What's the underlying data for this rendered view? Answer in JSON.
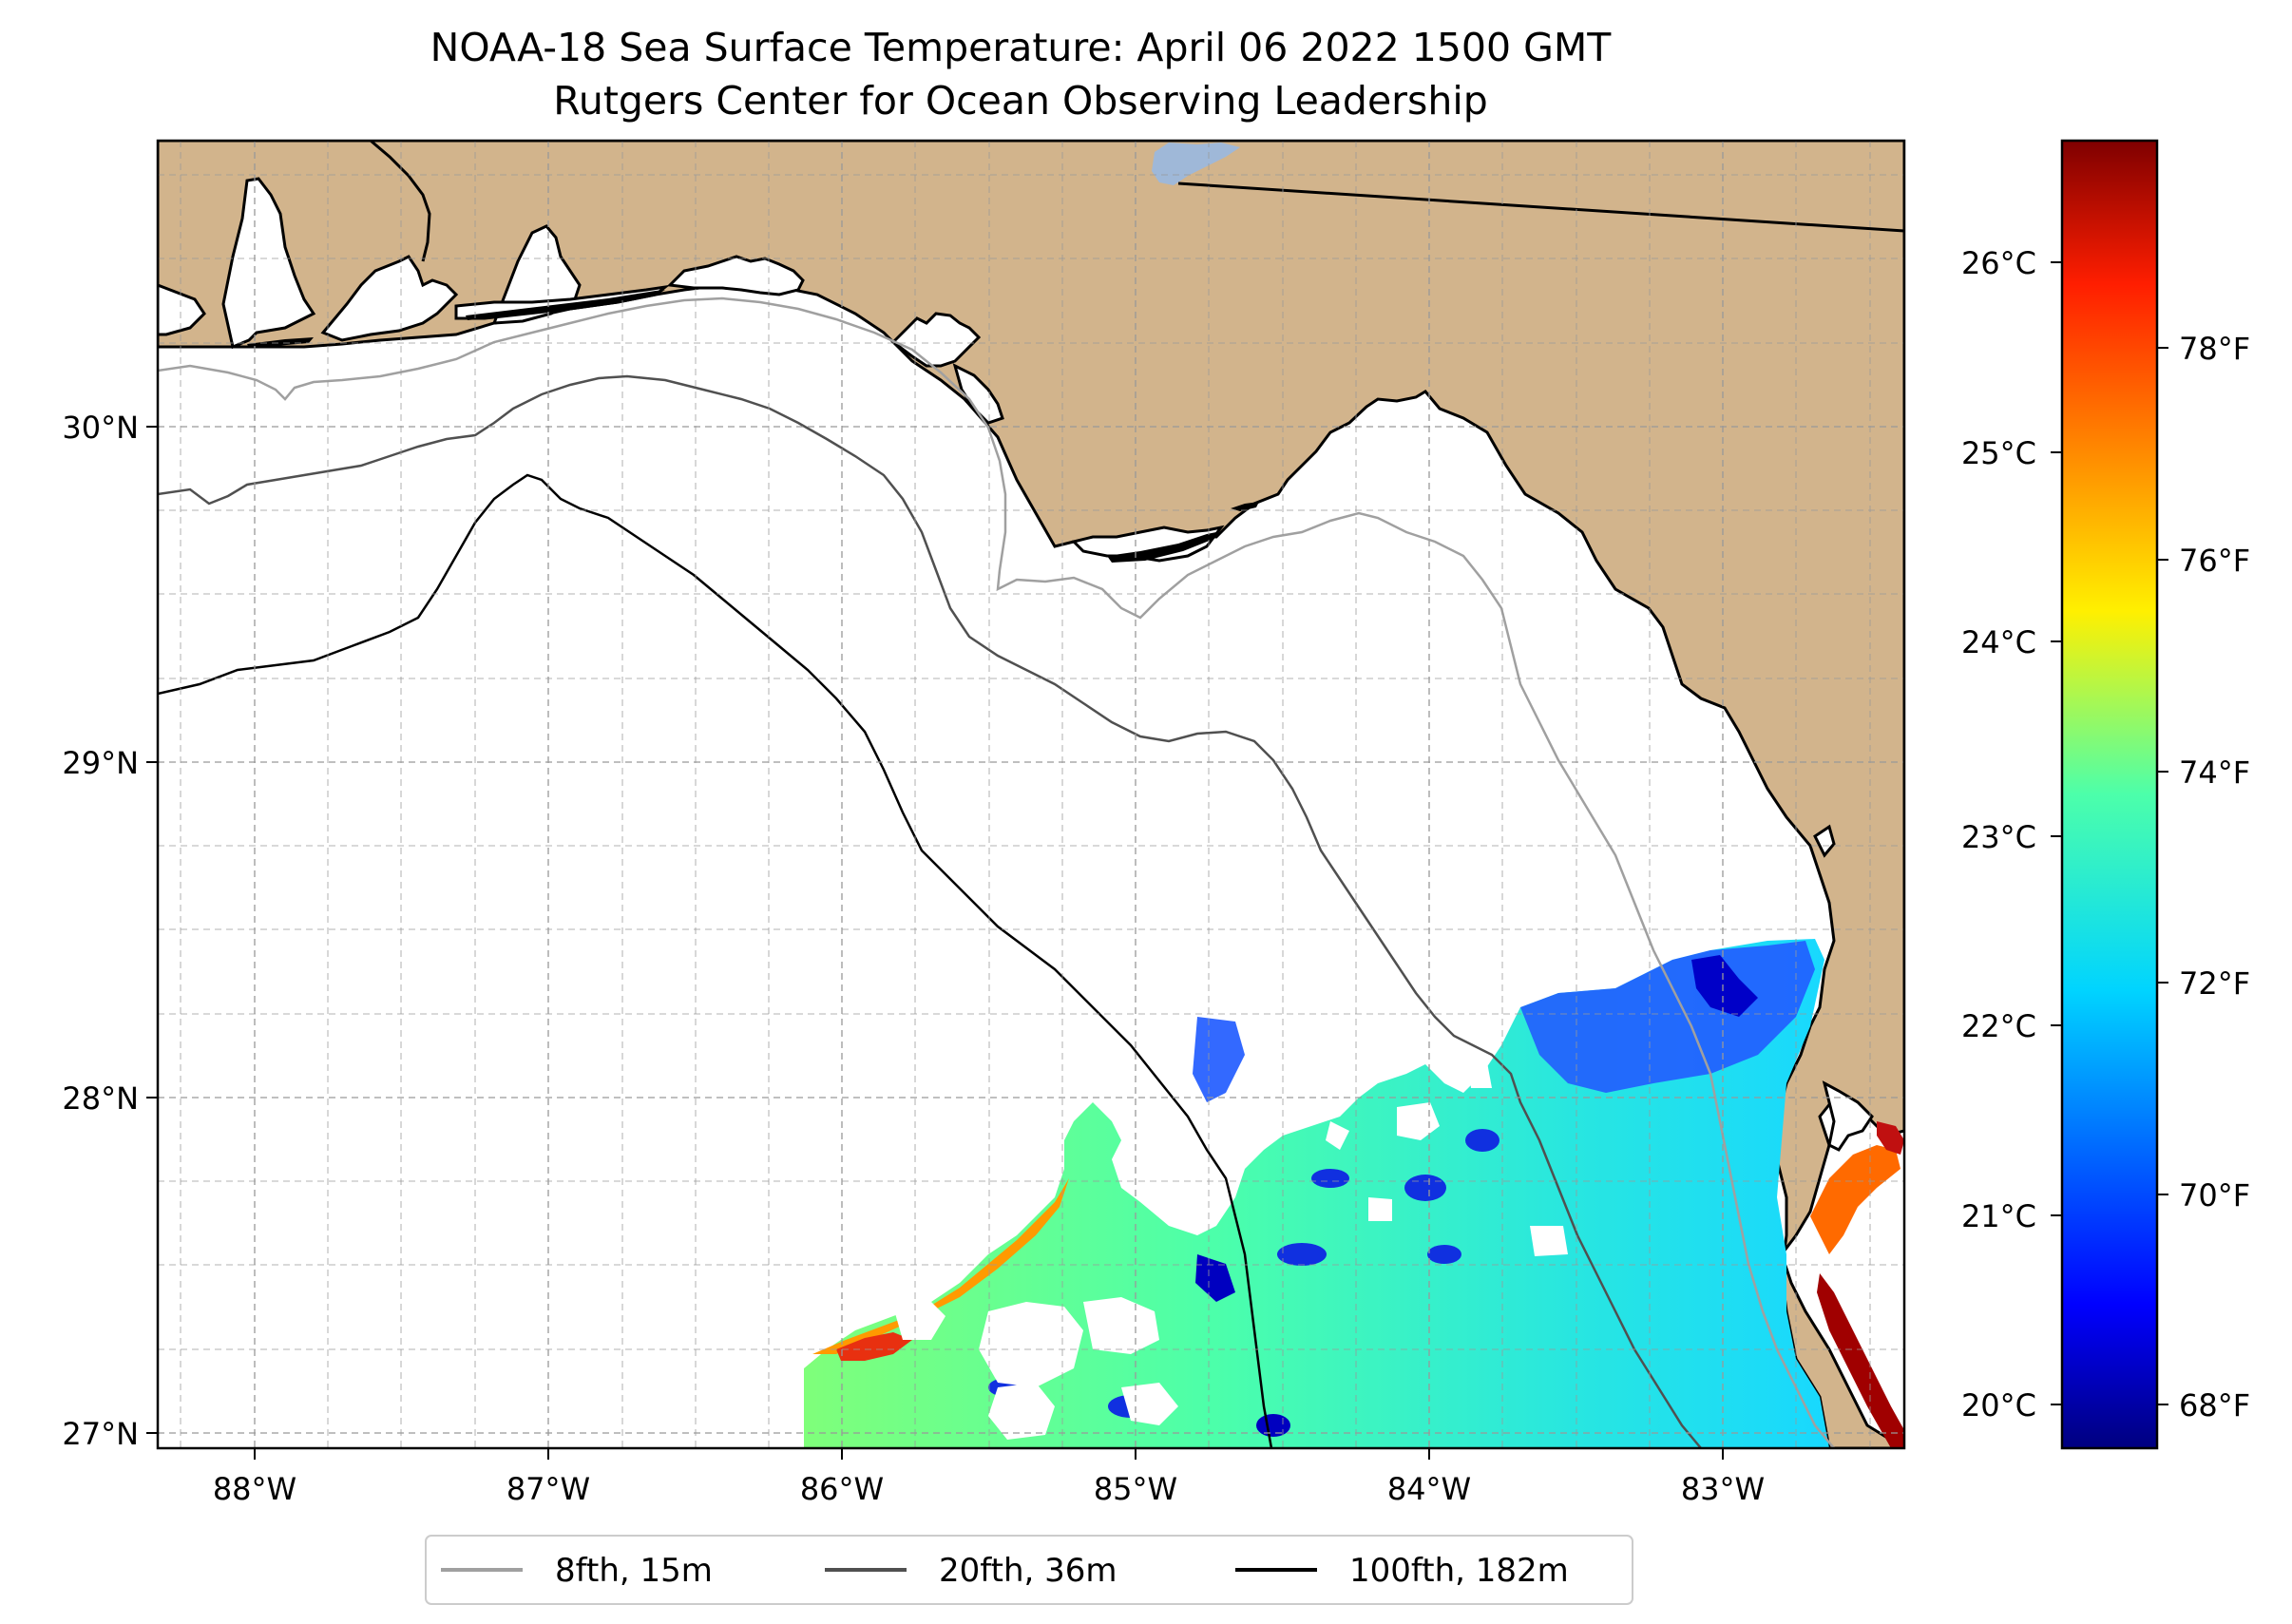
{
  "title": {
    "line1": "NOAA-18 Sea Surface Temperature: April 06 2022 1500 GMT",
    "line2": "Rutgers Center for Ocean Observing Leadership"
  },
  "map": {
    "lon_range": [
      -88.33,
      -82.38
    ],
    "lat_range": [
      26.93,
      30.85
    ],
    "land_color": "#D2B48C",
    "water_color": "#ffffff",
    "lake_color": "#9FB8D8",
    "gridlines": "dashed",
    "lon_ticks": [
      {
        "value": -88,
        "label": "88°W"
      },
      {
        "value": -87,
        "label": "87°W"
      },
      {
        "value": -86,
        "label": "86°W"
      },
      {
        "value": -85,
        "label": "85°W"
      },
      {
        "value": -84,
        "label": "84°W"
      },
      {
        "value": -83,
        "label": "83°W"
      }
    ],
    "lat_ticks": [
      {
        "value": 30,
        "label": "30°N"
      },
      {
        "value": 29,
        "label": "29°N"
      },
      {
        "value": 28,
        "label": "28°N"
      },
      {
        "value": 27,
        "label": "27°N"
      }
    ]
  },
  "colorbar": {
    "colormap": "jet",
    "min_c": 19.8,
    "max_c": 26.7,
    "celsius_ticks": [
      {
        "value": 20,
        "label": "20°C"
      },
      {
        "value": 21,
        "label": "21°C"
      },
      {
        "value": 22,
        "label": "22°C"
      },
      {
        "value": 23,
        "label": "23°C"
      },
      {
        "value": 24,
        "label": "24°C"
      },
      {
        "value": 25,
        "label": "25°C"
      },
      {
        "value": 26,
        "label": "26°C"
      }
    ],
    "fahrenheit_ticks": [
      {
        "value": 68,
        "label": "68°F"
      },
      {
        "value": 70,
        "label": "70°F"
      },
      {
        "value": 72,
        "label": "72°F"
      },
      {
        "value": 74,
        "label": "74°F"
      },
      {
        "value": 76,
        "label": "76°F"
      },
      {
        "value": 78,
        "label": "78°F"
      }
    ]
  },
  "legend": {
    "placement": "bottom-center",
    "items": [
      {
        "label": "8fth, 15m",
        "color": "#A0A0A0"
      },
      {
        "label": "20fth, 36m",
        "color": "#505050"
      },
      {
        "label": "100fth, 182m",
        "color": "#000000"
      }
    ]
  }
}
